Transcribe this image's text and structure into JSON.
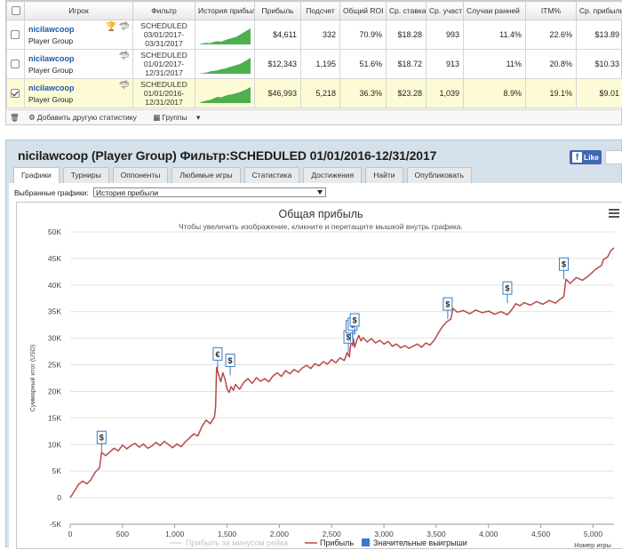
{
  "table": {
    "headers": [
      "Игрок",
      "Фильтр",
      "История прибыли",
      "Прибыль",
      "Подсчет",
      "Общий ROI",
      "Ср. ставка",
      "Ср. участ",
      "Случаи ранней",
      "ITM%",
      "Ср. прибыль"
    ],
    "rows": [
      {
        "player": "nicilawcoop",
        "group": "Player Group",
        "filter_status": "SCHEDULED",
        "filter_range": "03/01/2017-03/31/2017",
        "profit": "$4,611",
        "count": "332",
        "roi": "70.9%",
        "avg_stake": "$18.28",
        "avg_field": "993",
        "early": "11.4%",
        "itm": "22.6%",
        "avg_profit": "$13.89",
        "selected": false
      },
      {
        "player": "nicilawcoop",
        "group": "Player Group",
        "filter_status": "SCHEDULED",
        "filter_range": "01/01/2017-12/31/2017",
        "profit": "$12,343",
        "count": "1,195",
        "roi": "51.6%",
        "avg_stake": "$18.72",
        "avg_field": "913",
        "early": "11%",
        "itm": "20.8%",
        "avg_profit": "$10.33",
        "selected": false
      },
      {
        "player": "nicilawcoop",
        "group": "Player Group",
        "filter_status": "SCHEDULED",
        "filter_range": "01/01/2016-12/31/2017",
        "profit": "$46,993",
        "count": "5,218",
        "roi": "36.3%",
        "avg_stake": "$23.28",
        "avg_field": "1,039",
        "early": "8.9%",
        "itm": "19.1%",
        "avg_profit": "$9.01",
        "selected": true
      }
    ],
    "footer": {
      "add_stat": "Добавить другую статистику",
      "groups": "Группы"
    },
    "colors": {
      "selected_row": "#fdfbd5",
      "sparkline": "#4caf50"
    }
  },
  "profile": {
    "title": "nicilawcoop (Player Group) Фильтр:SCHEDULED 01/01/2016-12/31/2017",
    "like_label": "Like",
    "tabs": [
      "Графики",
      "Турниры",
      "Оппоненты",
      "Любимые игры",
      "Статистика",
      "Достижения",
      "Найти",
      "Опубликовать"
    ],
    "active_tab": 0,
    "select_label": "Выбранные графики:",
    "select_value": "История прибыли"
  },
  "chart_data": {
    "type": "line",
    "title": "Общая прибыль",
    "subtitle": "Чтобы увеличить изображение, кликните и перетащите мышкой внутрь графика.",
    "ylabel": "Суммарный итог (USD)",
    "xlabel": "Номер игры",
    "ylim": [
      -5000,
      50000
    ],
    "xlim": [
      0,
      5200
    ],
    "yticks": [
      -5000,
      0,
      5000,
      10000,
      15000,
      20000,
      25000,
      30000,
      35000,
      40000,
      45000,
      50000
    ],
    "ytick_labels": [
      "-5K",
      "0",
      "5K",
      "10K",
      "15K",
      "20K",
      "25K",
      "30K",
      "35K",
      "40K",
      "45K",
      "50K"
    ],
    "xticks": [
      0,
      500,
      1000,
      1500,
      2000,
      2500,
      3000,
      3500,
      4000,
      4500,
      5000
    ],
    "xtick_labels": [
      "0",
      "500",
      "1,000",
      "1,500",
      "2,000",
      "2,500",
      "3,000",
      "3,500",
      "4,000",
      "4,500",
      "5,000"
    ],
    "grid": true,
    "legend_position": "bottom",
    "series": [
      {
        "name": "Прибыль за минусом рейка",
        "color": "#d8d8d8",
        "values": []
      },
      {
        "name": "Прибыль",
        "color": "#b84848",
        "x": [
          0,
          40,
          80,
          120,
          160,
          200,
          240,
          280,
          300,
          340,
          380,
          420,
          460,
          500,
          540,
          580,
          620,
          660,
          700,
          740,
          780,
          820,
          860,
          900,
          940,
          980,
          1020,
          1060,
          1100,
          1140,
          1180,
          1220,
          1260,
          1300,
          1340,
          1380,
          1390,
          1400,
          1420,
          1440,
          1460,
          1480,
          1500,
          1520,
          1540,
          1560,
          1580,
          1620,
          1660,
          1700,
          1740,
          1780,
          1820,
          1860,
          1900,
          1940,
          1980,
          2020,
          2060,
          2100,
          2140,
          2180,
          2220,
          2260,
          2300,
          2340,
          2380,
          2420,
          2460,
          2500,
          2540,
          2580,
          2620,
          2650,
          2670,
          2690,
          2700,
          2710,
          2720,
          2740,
          2760,
          2780,
          2800,
          2840,
          2880,
          2920,
          2960,
          3000,
          3040,
          3080,
          3120,
          3160,
          3200,
          3240,
          3280,
          3320,
          3360,
          3400,
          3440,
          3480,
          3520,
          3560,
          3600,
          3640,
          3660,
          3700,
          3760,
          3820,
          3880,
          3940,
          4000,
          4060,
          4120,
          4180,
          4220,
          4260,
          4300,
          4340,
          4400,
          4460,
          4520,
          4580,
          4640,
          4680,
          4720,
          4740,
          4780,
          4840,
          4900,
          4960,
          5020,
          5080,
          5100,
          5140,
          5170,
          5200
        ],
        "values": [
          0,
          1200,
          2500,
          3100,
          2600,
          3400,
          4800,
          5600,
          8500,
          7900,
          8600,
          9300,
          8800,
          9900,
          9200,
          9800,
          10200,
          9500,
          10100,
          9300,
          9700,
          10400,
          9800,
          10600,
          10000,
          9400,
          10100,
          9600,
          10500,
          11200,
          12000,
          11600,
          13400,
          14600,
          13900,
          15200,
          17000,
          24500,
          23100,
          21800,
          23500,
          22300,
          20500,
          19800,
          20900,
          20200,
          21300,
          20400,
          21700,
          22400,
          21500,
          22600,
          21900,
          22400,
          21800,
          22900,
          23500,
          22800,
          23900,
          23300,
          24100,
          23600,
          24400,
          24900,
          24300,
          25200,
          24800,
          25600,
          25100,
          26000,
          25400,
          26300,
          25800,
          27300,
          26500,
          30200,
          28600,
          29800,
          28300,
          29600,
          30500,
          29500,
          30100,
          29300,
          29900,
          29100,
          29600,
          28900,
          29400,
          28500,
          28900,
          28200,
          28600,
          28100,
          28500,
          28900,
          28300,
          29100,
          28700,
          29600,
          31000,
          32200,
          33100,
          33600,
          35600,
          34900,
          35200,
          34600,
          35300,
          34800,
          35100,
          34500,
          35000,
          34400,
          35300,
          36500,
          36100,
          36700,
          36200,
          36900,
          36400,
          37100,
          36600,
          37300,
          37800,
          41100,
          40300,
          41400,
          40900,
          41800,
          42900,
          43700,
          44800,
          45300,
          46500,
          46993
        ]
      }
    ],
    "large_wins_label": "Значительные выигрыши",
    "large_wins_color": "#3a7bc8",
    "markers": [
      {
        "x": 300,
        "y": 8500,
        "symbol": "$"
      },
      {
        "x": 1410,
        "y": 24200,
        "symbol": "€"
      },
      {
        "x": 1530,
        "y": 23000,
        "symbol": "$"
      },
      {
        "x": 2660,
        "y": 27400,
        "symbol": "$"
      },
      {
        "x": 2680,
        "y": 29300,
        "symbol": "€"
      },
      {
        "x": 2700,
        "y": 29800,
        "symbol": "$"
      },
      {
        "x": 2720,
        "y": 30600,
        "symbol": "$"
      },
      {
        "x": 3610,
        "y": 33600,
        "symbol": "$"
      },
      {
        "x": 4180,
        "y": 36600,
        "symbol": "$"
      },
      {
        "x": 4720,
        "y": 41100,
        "symbol": "$"
      }
    ]
  }
}
